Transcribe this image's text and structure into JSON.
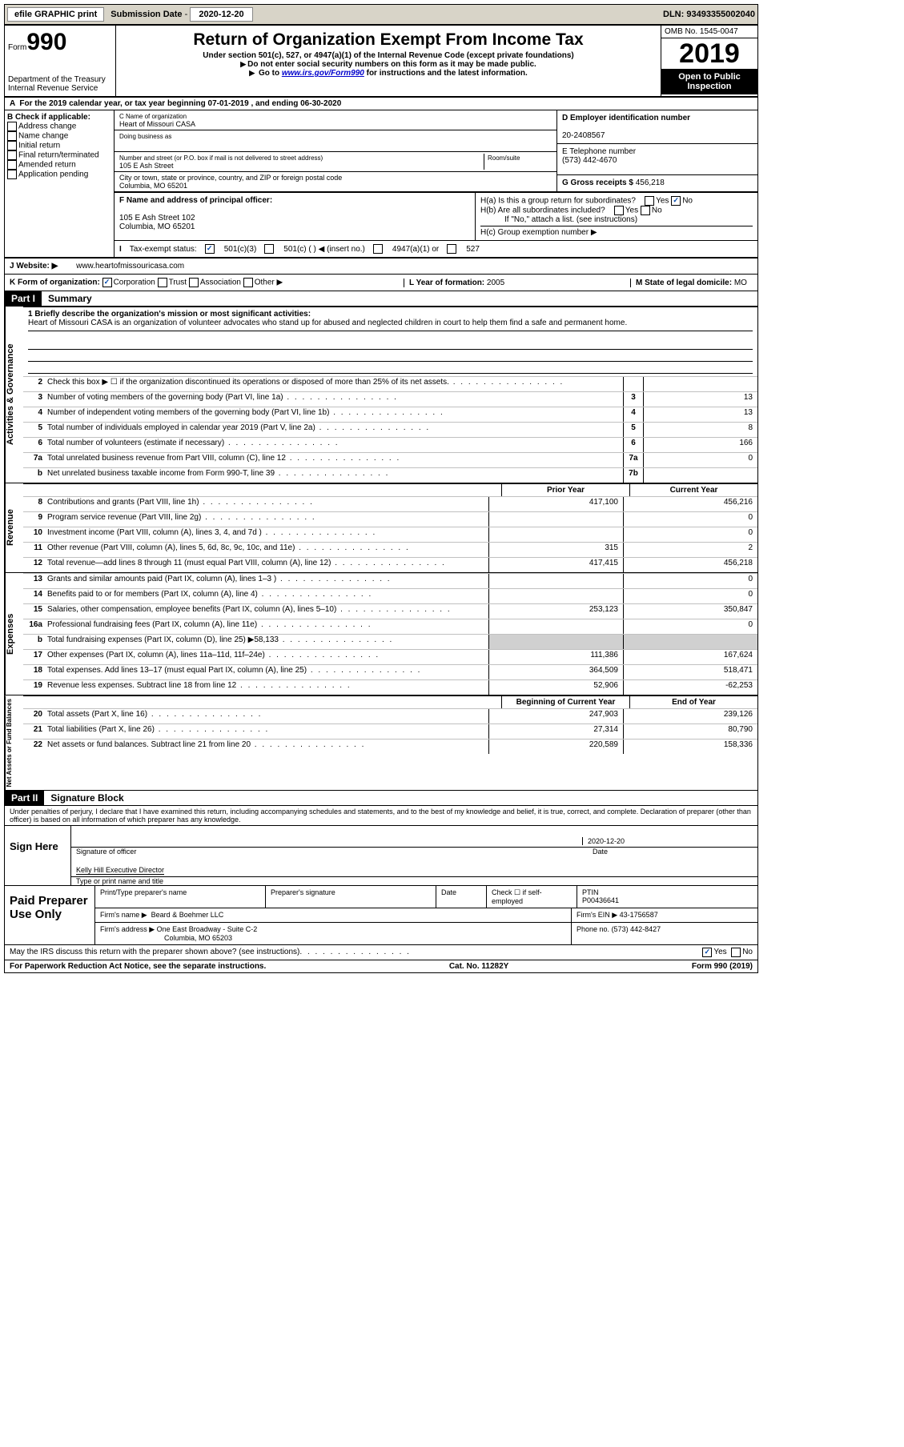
{
  "topbar": {
    "efile": "efile GRAPHIC print",
    "sub_label": "Submission Date",
    "sub_date": "2020-12-20",
    "dln_label": "DLN:",
    "dln": "93493355002040"
  },
  "header": {
    "form_word": "Form",
    "form_num": "990",
    "dept": "Department of the Treasury\nInternal Revenue Service",
    "title": "Return of Organization Exempt From Income Tax",
    "subtitle": "Under section 501(c), 527, or 4947(a)(1) of the Internal Revenue Code (except private foundations)",
    "note1": "Do not enter social security numbers on this form as it may be made public.",
    "note2_pre": "Go to ",
    "note2_link": "www.irs.gov/Form990",
    "note2_post": " for instructions and the latest information.",
    "omb": "OMB No. 1545-0047",
    "year": "2019",
    "open_pub": "Open to Public Inspection"
  },
  "a_line": "For the 2019 calendar year, or tax year beginning 07-01-2019     , and ending 06-30-2020",
  "b_checks": {
    "lbl": "B Check if applicable:",
    "items": [
      "Address change",
      "Name change",
      "Initial return",
      "Final return/terminated",
      "Amended return",
      "Application pending"
    ]
  },
  "org": {
    "c_lbl": "C Name of organization",
    "name": "Heart of Missouri CASA",
    "dba_lbl": "Doing business as",
    "street_lbl": "Number and street (or P.O. box if mail is not delivered to street address)",
    "street": "105 E Ash Street",
    "room_lbl": "Room/suite",
    "city_lbl": "City or town, state or province, country, and ZIP or foreign postal code",
    "city": "Columbia, MO  65201"
  },
  "d": {
    "lbl": "D Employer identification number",
    "val": "20-2408567"
  },
  "e": {
    "lbl": "E Telephone number",
    "val": "(573) 442-4670"
  },
  "g": {
    "lbl": "G Gross receipts $",
    "val": "456,218"
  },
  "f": {
    "lbl": "F  Name and address of principal officer:",
    "addr1": "105 E Ash Street 102",
    "addr2": "Columbia, MO  65201"
  },
  "h": {
    "a": "H(a)  Is this a group return for subordinates?",
    "a_no": true,
    "b": "H(b)  Are all subordinates included?",
    "b_note": "If \"No,\" attach a list. (see instructions)",
    "c": "H(c)  Group exemption number ▶"
  },
  "i": {
    "lbl": "Tax-exempt status:",
    "o1": "501(c)(3)",
    "o1_checked": true,
    "o2": "501(c) (   ) ◀ (insert no.)",
    "o3": "4947(a)(1) or",
    "o4": "527"
  },
  "j": {
    "lbl": "J   Website: ▶",
    "val": "www.heartofmissouricasa.com"
  },
  "k": {
    "lbl": "K Form of organization:",
    "corp": "Corporation",
    "corp_checked": true,
    "trust": "Trust",
    "assoc": "Association",
    "other": "Other ▶"
  },
  "l": {
    "lbl": "L Year of formation:",
    "val": "2005"
  },
  "m": {
    "lbl": "M State of legal domicile:",
    "val": "MO"
  },
  "parts": {
    "p1": "Part I",
    "p1_title": "Summary",
    "p2": "Part II",
    "p2_title": "Signature Block"
  },
  "mission": {
    "lbl": "1   Briefly describe the organization's mission or most significant activities:",
    "txt": "Heart of Missouri CASA is an organization of volunteer advocates who stand up for abused and neglected children in court to help them find a safe and permanent home."
  },
  "sections": {
    "gov": "Activities & Governance",
    "rev": "Revenue",
    "exp": "Expenses",
    "net": "Net Assets or Fund Balances"
  },
  "gov_lines": [
    {
      "n": "2",
      "t": "Check this box ▶ ☐  if the organization discontinued its operations or disposed of more than 25% of its net assets.",
      "box": "",
      "v": ""
    },
    {
      "n": "3",
      "t": "Number of voting members of the governing body (Part VI, line 1a)",
      "box": "3",
      "v": "13"
    },
    {
      "n": "4",
      "t": "Number of independent voting members of the governing body (Part VI, line 1b)",
      "box": "4",
      "v": "13"
    },
    {
      "n": "5",
      "t": "Total number of individuals employed in calendar year 2019 (Part V, line 2a)",
      "box": "5",
      "v": "8"
    },
    {
      "n": "6",
      "t": "Total number of volunteers (estimate if necessary)",
      "box": "6",
      "v": "166"
    },
    {
      "n": "7a",
      "t": "Total unrelated business revenue from Part VIII, column (C), line 12",
      "box": "7a",
      "v": "0"
    },
    {
      "n": "b",
      "t": "Net unrelated business taxable income from Form 990-T, line 39",
      "box": "7b",
      "v": ""
    }
  ],
  "col_hdrs": {
    "py": "Prior Year",
    "cy": "Current Year"
  },
  "rev_lines": [
    {
      "n": "8",
      "t": "Contributions and grants (Part VIII, line 1h)",
      "py": "417,100",
      "cy": "456,216"
    },
    {
      "n": "9",
      "t": "Program service revenue (Part VIII, line 2g)",
      "py": "",
      "cy": "0"
    },
    {
      "n": "10",
      "t": "Investment income (Part VIII, column (A), lines 3, 4, and 7d )",
      "py": "",
      "cy": "0"
    },
    {
      "n": "11",
      "t": "Other revenue (Part VIII, column (A), lines 5, 6d, 8c, 9c, 10c, and 11e)",
      "py": "315",
      "cy": "2"
    },
    {
      "n": "12",
      "t": "Total revenue—add lines 8 through 11 (must equal Part VIII, column (A), line 12)",
      "py": "417,415",
      "cy": "456,218"
    }
  ],
  "exp_lines": [
    {
      "n": "13",
      "t": "Grants and similar amounts paid (Part IX, column (A), lines 1–3 )",
      "py": "",
      "cy": "0"
    },
    {
      "n": "14",
      "t": "Benefits paid to or for members (Part IX, column (A), line 4)",
      "py": "",
      "cy": "0"
    },
    {
      "n": "15",
      "t": "Salaries, other compensation, employee benefits (Part IX, column (A), lines 5–10)",
      "py": "253,123",
      "cy": "350,847"
    },
    {
      "n": "16a",
      "t": "Professional fundraising fees (Part IX, column (A), line 11e)",
      "py": "",
      "cy": "0"
    },
    {
      "n": "b",
      "t": "Total fundraising expenses (Part IX, column (D), line 25) ▶58,133",
      "py": "shade",
      "cy": "shade"
    },
    {
      "n": "17",
      "t": "Other expenses (Part IX, column (A), lines 11a–11d, 11f–24e)",
      "py": "111,386",
      "cy": "167,624"
    },
    {
      "n": "18",
      "t": "Total expenses. Add lines 13–17 (must equal Part IX, column (A), line 25)",
      "py": "364,509",
      "cy": "518,471"
    },
    {
      "n": "19",
      "t": "Revenue less expenses. Subtract line 18 from line 12",
      "py": "52,906",
      "cy": "-62,253"
    }
  ],
  "net_hdrs": {
    "py": "Beginning of Current Year",
    "cy": "End of Year"
  },
  "net_lines": [
    {
      "n": "20",
      "t": "Total assets (Part X, line 16)",
      "py": "247,903",
      "cy": "239,126"
    },
    {
      "n": "21",
      "t": "Total liabilities (Part X, line 26)",
      "py": "27,314",
      "cy": "80,790"
    },
    {
      "n": "22",
      "t": "Net assets or fund balances. Subtract line 21 from line 20",
      "py": "220,589",
      "cy": "158,336"
    }
  ],
  "penalty": "Under penalties of perjury, I declare that I have examined this return, including accompanying schedules and statements, and to the best of my knowledge and belief, it is true, correct, and complete. Declaration of preparer (other than officer) is based on all information of which preparer has any knowledge.",
  "sign": {
    "here": "Sign Here",
    "sig_lbl": "Signature of officer",
    "date_lbl": "Date",
    "date": "2020-12-20",
    "name": "Kelly Hill  Executive Director",
    "name_lbl": "Type or print name and title"
  },
  "prep": {
    "title": "Paid Preparer Use Only",
    "h1": "Print/Type preparer's name",
    "h2": "Preparer's signature",
    "h3": "Date",
    "h4": "Check ☐ if self-employed",
    "h5_lbl": "PTIN",
    "h5": "P00436641",
    "firm_lbl": "Firm's name     ▶",
    "firm": "Beard & Boehmer LLC",
    "ein_lbl": "Firm's EIN ▶",
    "ein": "43-1756587",
    "addr_lbl": "Firm's address ▶",
    "addr1": "One East Broadway - Suite C-2",
    "addr2": "Columbia, MO  65203",
    "ph_lbl": "Phone no.",
    "ph": "(573) 442-8427"
  },
  "discuss": {
    "q": "May the IRS discuss this return with the preparer shown above? (see instructions)",
    "yes_checked": true
  },
  "footer": {
    "l": "For Paperwork Reduction Act Notice, see the separate instructions.",
    "m": "Cat. No. 11282Y",
    "r": "Form 990 (2019)"
  }
}
